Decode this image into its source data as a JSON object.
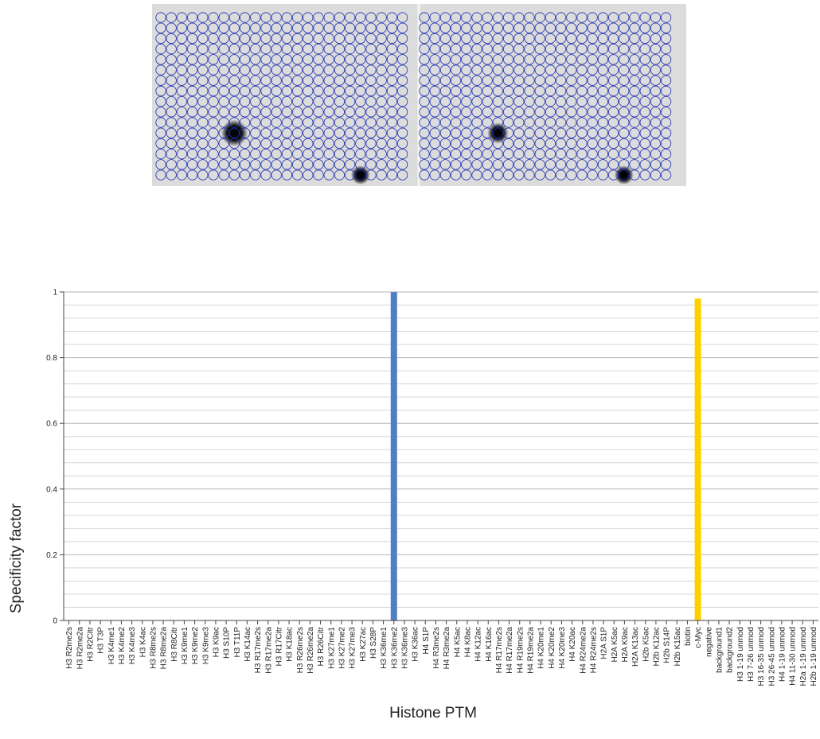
{
  "colors": {
    "background_panel": "#dcdcdc",
    "circle_stroke": "#1d2fb0",
    "spot": "#000000",
    "gridline": "#c8c8c8",
    "axis": "#444444",
    "bar_blue": "#4f7fc4",
    "bar_yellow": "#ffd000"
  },
  "array_image": {
    "panels": [
      {
        "rows": 16,
        "cols": 24,
        "spots": [
          {
            "row": 12,
            "col": 8,
            "strength": 1.4
          },
          {
            "row": 16,
            "col": 20,
            "strength": 1.0
          }
        ]
      },
      {
        "rows": 16,
        "cols": 24,
        "spots": [
          {
            "row": 12,
            "col": 8,
            "strength": 1.1
          },
          {
            "row": 16,
            "col": 20,
            "strength": 1.0
          }
        ]
      }
    ]
  },
  "chart_data": {
    "type": "bar",
    "title": "",
    "xlabel": "Histone PTM",
    "ylabel": "Specificity factor",
    "ylim": [
      0,
      1
    ],
    "yticks": [
      "0",
      "0.2",
      "0.4",
      "0.6",
      "0.8",
      "1"
    ],
    "grid": true,
    "categories": [
      "H3 R2me2s",
      "H3 R2me2a",
      "H3 R2Citr",
      "H3 T3P",
      "H3 K4me1",
      "H3 K4me2",
      "H3 K4me3",
      "H3 K4ac",
      "H3 R8me2s",
      "H3 R8me2a",
      "H3 R8Citr",
      "H3 K9me1",
      "H3 K9me2",
      "H3 K9me3",
      "H3 K9ac",
      "H3 S10P",
      "H3 T11P",
      "H3 K14ac",
      "H3 R17me2s",
      "H3 R17me2a",
      "H3 R17Citr",
      "H3 K18ac",
      "H3 R26me2s",
      "H3 R26me2a",
      "H3 R26Citr",
      "H3 K27me1",
      "H3 K27me2",
      "H3 K27me3",
      "H3 K27ac",
      "H3 S28P",
      "H3 K36me1",
      "H3 K36me2",
      "H3 K36me3",
      "H3 K36ac",
      "H4 S1P",
      "H4 R3me2s",
      "H4 R3me2a",
      "H4 K5ac",
      "H4 K8ac",
      "H4 K12ac",
      "H4 K16ac",
      "H4 R17me2s",
      "H4 R17me2a",
      "H4 R19me2s",
      "H4 R19me2a",
      "H4 K20me1",
      "H4 K20me2",
      "H4 K20me3",
      "H4 K20ac",
      "H4 R24me2a",
      "H4 R24me2s",
      "H2A S1P",
      "H2A K5ac",
      "H2A K9ac",
      "H2A K13ac",
      "H2b K5ac",
      "H2b K12ac",
      "H2b S14P",
      "H2b K15ac",
      "biotin",
      "c-Myc",
      "negative",
      "background1",
      "background2",
      "H3 1-19 unmod",
      "H3 7-26 unmod",
      "H3 16-35 unmod",
      "H3 26-45 unmod",
      "H4 1-19 unmod",
      "H4 11-30 unmod",
      "H2a 1-19 unmod",
      "H2b 1-19 unmod"
    ],
    "bars": [
      {
        "category": "H3 K36me2",
        "value": 1.0,
        "color": "#4f7fc4"
      },
      {
        "category": "c-Myc",
        "value": 0.98,
        "color": "#ffd000"
      }
    ]
  }
}
